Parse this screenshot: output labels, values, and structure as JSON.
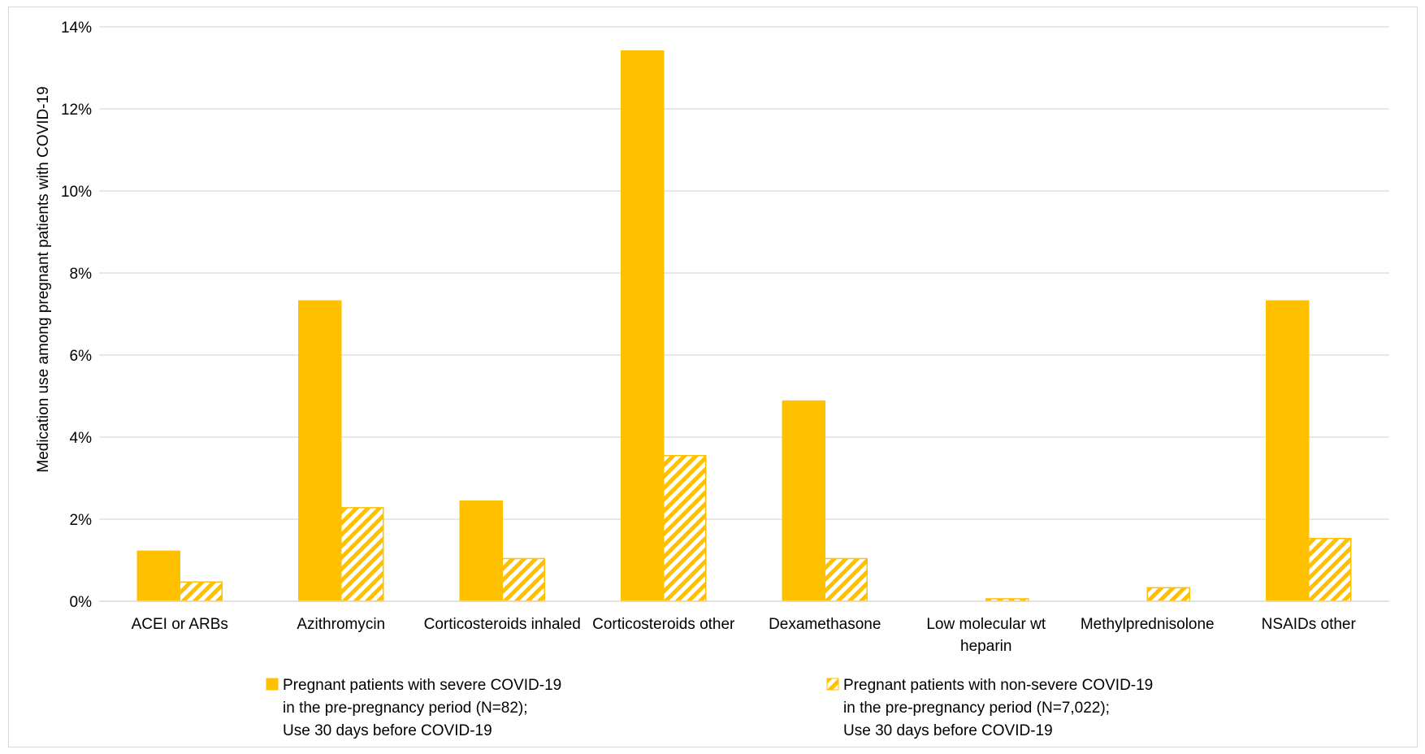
{
  "chart_data": {
    "type": "bar",
    "ylabel": "Medication use among pregnant patients with COVID-19",
    "xlabel": "",
    "ylim": [
      0,
      14
    ],
    "yticks": [
      0,
      2,
      4,
      6,
      8,
      10,
      12,
      14
    ],
    "ytick_labels": [
      "0%",
      "2%",
      "4%",
      "6%",
      "8%",
      "10%",
      "12%",
      "14%"
    ],
    "grid": true,
    "legend_position": "bottom",
    "categories": [
      [
        "ACEI or ARBs"
      ],
      [
        "Azithromycin"
      ],
      [
        "Corticosteroids inhaled"
      ],
      [
        "Corticosteroids other"
      ],
      [
        "Dexamethasone"
      ],
      [
        "Low molecular wt",
        "heparin"
      ],
      [
        "Methylprednisolone"
      ],
      [
        "NSAIDs other"
      ]
    ],
    "series": [
      {
        "name": [
          "Pregnant patients with severe COVID-19",
          "in the pre-pregnancy period (N=82);",
          "Use 30 days before COVID-19"
        ],
        "fill": "solid",
        "color": "#FFC000",
        "values": [
          1.22,
          7.32,
          2.44,
          13.41,
          4.88,
          0,
          0,
          7.32
        ]
      },
      {
        "name": [
          "Pregnant patients with non-severe COVID-19",
          "in the pre-pregnancy period (N=7,022);",
          "Use 30 days before COVID-19"
        ],
        "fill": "hatched",
        "color": "#FFC000",
        "values": [
          0.47,
          2.28,
          1.04,
          3.55,
          1.04,
          0.06,
          0.33,
          1.53
        ]
      }
    ]
  }
}
